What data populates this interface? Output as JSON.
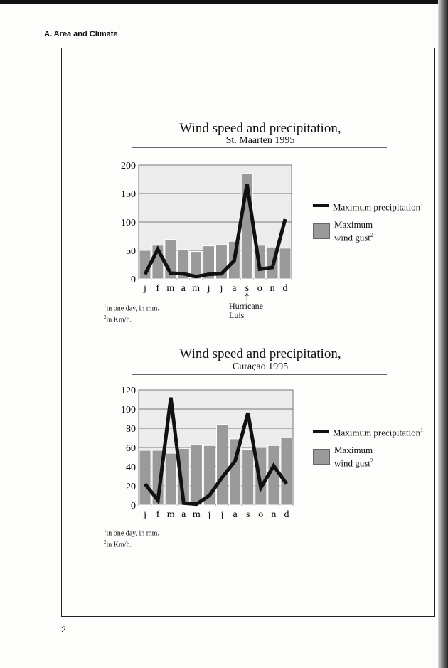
{
  "header": "A. Area and Climate",
  "page_number": "2",
  "legend": {
    "line": "Maximum precipitation",
    "line_sup": "1",
    "bar": "Maximum wind gust",
    "bar_sup": "2"
  },
  "footnotes": {
    "f1": "in one day, in mm.",
    "f1_sup": "1",
    "f2": "in Km/h.",
    "f2_sup": "2"
  },
  "chart_data": [
    {
      "type": "bar+line",
      "title": "Wind speed and precipitation,",
      "subtitle": "St. Maarten 1995",
      "categories": [
        "j",
        "f",
        "m",
        "a",
        "m",
        "j",
        "j",
        "a",
        "s",
        "o",
        "n",
        "d"
      ],
      "ylim": [
        0,
        200
      ],
      "yticks": [
        0,
        50,
        100,
        150,
        200
      ],
      "grid": true,
      "series": [
        {
          "name": "Maximum wind gust",
          "type": "bar",
          "color": "#9a9a9a",
          "values": [
            50,
            59,
            69,
            52,
            48,
            58,
            60,
            66,
            185,
            59,
            56,
            54
          ]
        },
        {
          "name": "Maximum precipitation",
          "type": "line",
          "color": "#111111",
          "values": [
            8,
            52,
            10,
            9,
            4,
            8,
            9,
            32,
            167,
            17,
            20,
            105
          ]
        }
      ],
      "annotation": {
        "category_index": 8,
        "text1": "Hurricane",
        "text2": "Luis"
      }
    },
    {
      "type": "bar+line",
      "title": "Wind speed and precipitation,",
      "subtitle": "Curaçao 1995",
      "categories": [
        "j",
        "f",
        "m",
        "a",
        "m",
        "j",
        "j",
        "a",
        "s",
        "o",
        "n",
        "d"
      ],
      "ylim": [
        0,
        120
      ],
      "yticks": [
        0,
        20,
        40,
        60,
        80,
        100,
        120
      ],
      "grid": true,
      "series": [
        {
          "name": "Maximum wind gust",
          "type": "bar",
          "color": "#9a9a9a",
          "values": [
            57,
            57,
            54,
            59,
            63,
            62,
            84,
            69,
            58,
            60,
            62,
            70
          ]
        },
        {
          "name": "Maximum precipitation",
          "type": "line",
          "color": "#111111",
          "values": [
            22,
            5,
            112,
            2,
            1,
            10,
            29,
            46,
            96,
            18,
            41,
            22
          ]
        }
      ]
    }
  ]
}
